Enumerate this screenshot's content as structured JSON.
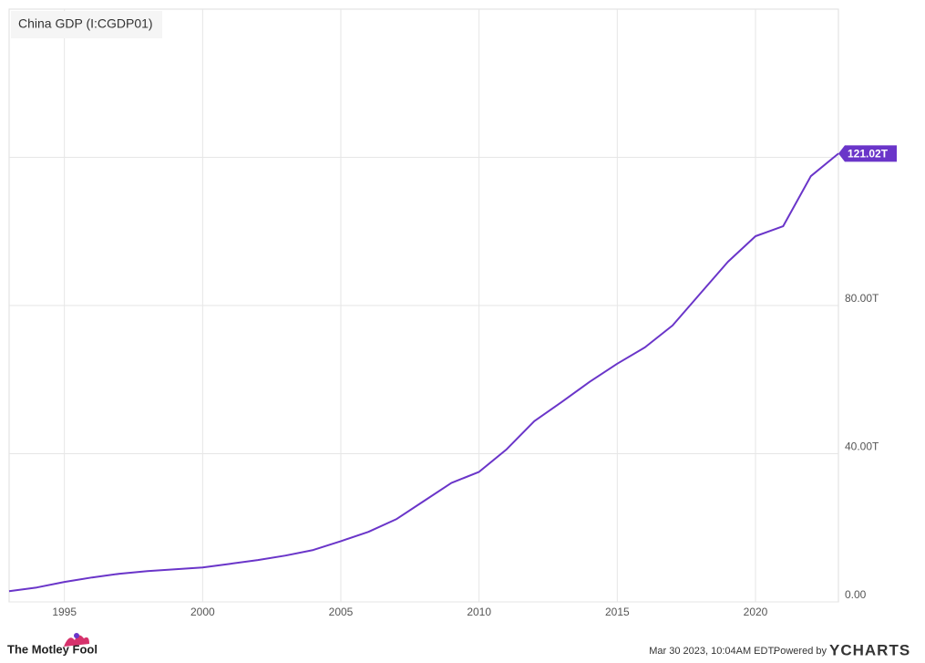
{
  "chart_data": {
    "type": "line",
    "title": "China GDP (I:CGDP01)",
    "x": [
      1993,
      1994,
      1995,
      1996,
      1997,
      1998,
      1999,
      2000,
      2001,
      2002,
      2003,
      2004,
      2005,
      2006,
      2007,
      2008,
      2009,
      2010,
      2011,
      2012,
      2013,
      2014,
      2015,
      2016,
      2017,
      2018,
      2019,
      2020,
      2021,
      2022,
      2023
    ],
    "series": [
      {
        "name": "China GDP (I:CGDP01)",
        "color": "#6a35c9",
        "values": [
          2.9,
          3.9,
          5.4,
          6.6,
          7.6,
          8.3,
          8.8,
          9.3,
          10.3,
          11.3,
          12.5,
          14.0,
          16.4,
          18.9,
          22.3,
          27.2,
          32.1,
          35.1,
          41.2,
          48.8,
          54.0,
          59.4,
          64.3,
          68.7,
          74.6,
          83.2,
          91.8,
          98.7,
          101.4,
          114.9,
          121.02
        ],
        "value_labels": [
          null,
          null,
          null,
          null,
          null,
          null,
          null,
          null,
          null,
          null,
          null,
          null,
          null,
          null,
          null,
          null,
          null,
          null,
          null,
          null,
          null,
          null,
          null,
          null,
          null,
          null,
          null,
          null,
          null,
          null,
          "121.02T"
        ]
      }
    ],
    "xlim": [
      1993,
      2023
    ],
    "xticks": [
      1995,
      2000,
      2005,
      2010,
      2015,
      2020
    ],
    "ylim": [
      0,
      160
    ],
    "yticks": [
      {
        "value": 0,
        "label": "0.00"
      },
      {
        "value": 40,
        "label": "40.00T"
      },
      {
        "value": 80,
        "label": "80.00T"
      }
    ],
    "ygrid": [
      0,
      40,
      80,
      120
    ],
    "grid": true,
    "footer": {
      "brand": "The Motley Fool",
      "timestamp": "Mar 30 2023, 10:04AM EDT.",
      "powered": "Powered by",
      "provider": "YCHARTS"
    }
  }
}
